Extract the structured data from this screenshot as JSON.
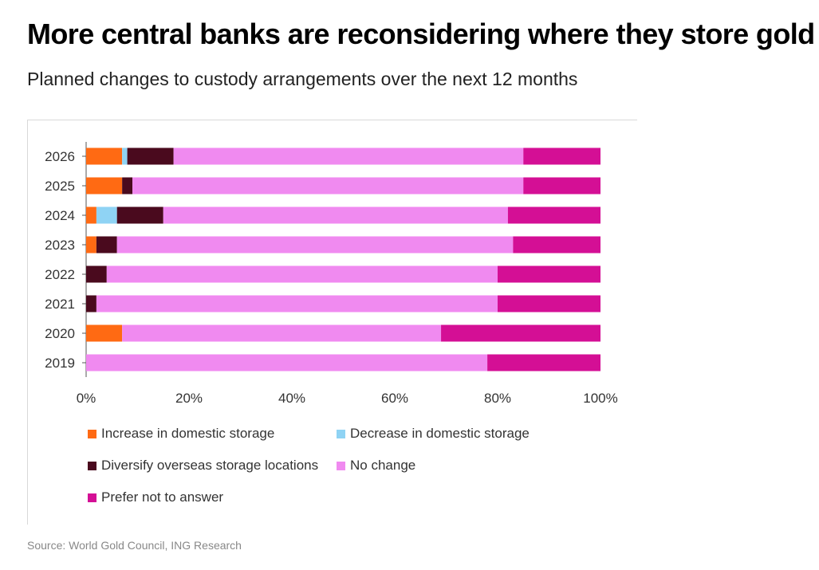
{
  "header": {
    "title": "More central banks are reconsidering where they store gold",
    "subtitle": "Planned changes to custody arrangements over the next 12 months"
  },
  "source": "Source: World Gold Council, ING Research",
  "chart_data": {
    "type": "bar",
    "orientation": "horizontal",
    "stacked": true,
    "categories": [
      "2026",
      "2025",
      "2024",
      "2023",
      "2022",
      "2021",
      "2020",
      "2019"
    ],
    "xlim": [
      0,
      100
    ],
    "xticks": [
      "0%",
      "20%",
      "40%",
      "60%",
      "80%",
      "100%"
    ],
    "grid": false,
    "legend_position": "bottom",
    "series": [
      {
        "name": "Increase in domestic storage",
        "color": "#ff6a13",
        "values": [
          7,
          7,
          2,
          2,
          0,
          0,
          7,
          0
        ]
      },
      {
        "name": "Decrease in domestic storage",
        "color": "#8fd3f4",
        "values": [
          1,
          0,
          4,
          0,
          0,
          0,
          0,
          0
        ]
      },
      {
        "name": "Diversify overseas storage locations",
        "color": "#4a0a1e",
        "values": [
          9,
          2,
          9,
          4,
          4,
          2,
          0,
          0
        ]
      },
      {
        "name": "No change",
        "color": "#f08af0",
        "values": [
          68,
          76,
          67,
          77,
          76,
          78,
          62,
          78
        ]
      },
      {
        "name": "Prefer not to answer",
        "color": "#d40f95",
        "values": [
          15,
          15,
          18,
          17,
          20,
          20,
          31,
          22
        ]
      }
    ]
  }
}
